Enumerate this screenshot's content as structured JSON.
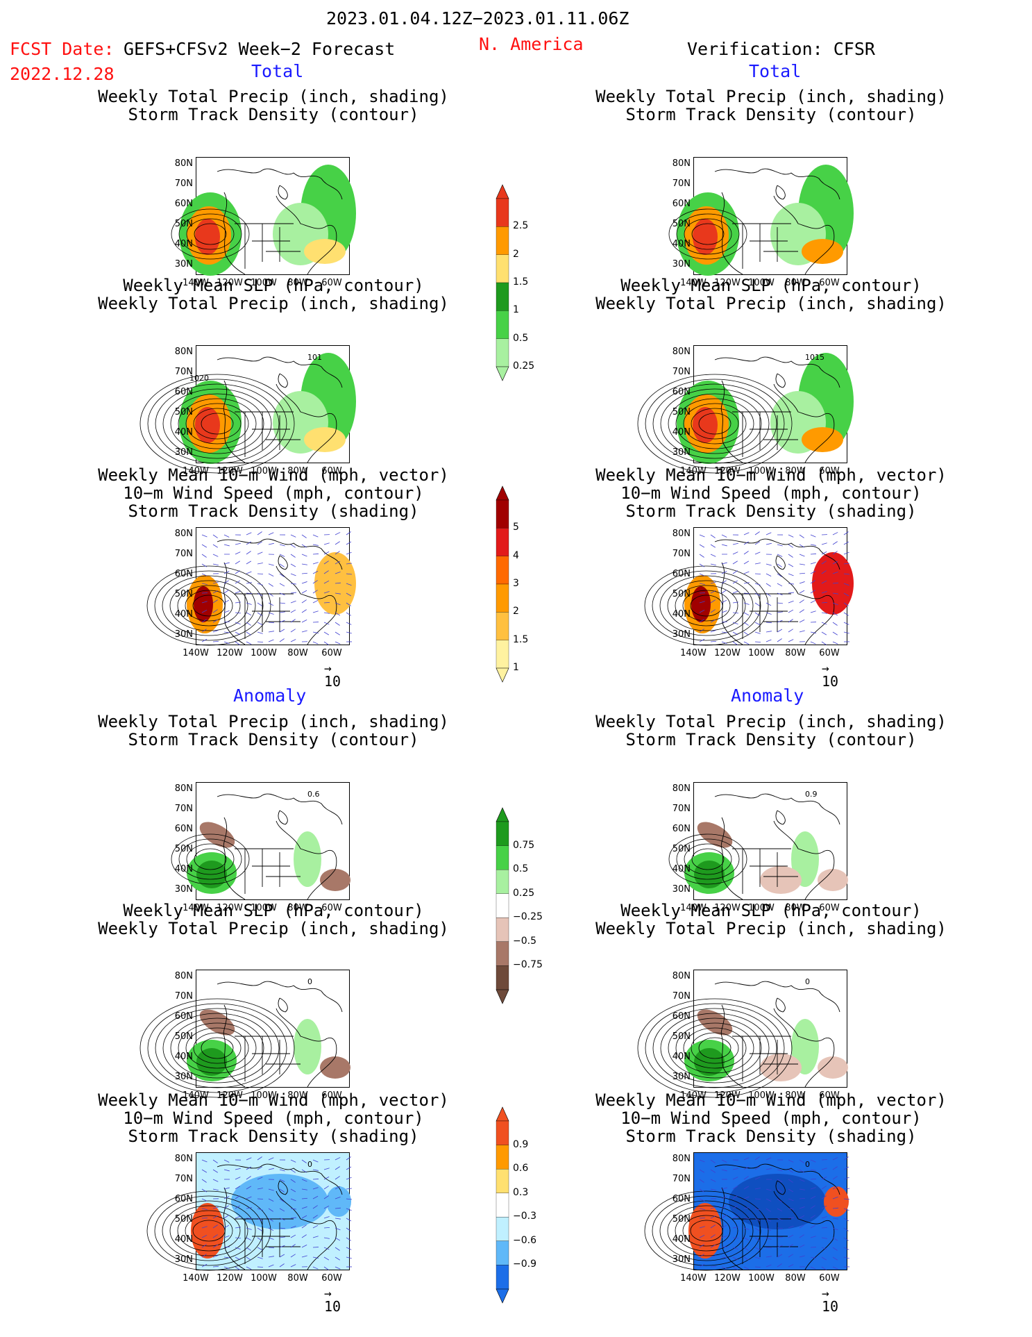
{
  "header": {
    "period": "2023.01.04.12Z−2023.01.11.06Z",
    "fcst_label": "FCST Date:",
    "model": "GEFS+CFSv2 Week−2 Forecast",
    "fcst_date": "2022.12.28",
    "region": "N. America",
    "verification": "Verification: CFSR"
  },
  "sections": {
    "total": "Total",
    "anomaly": "Anomaly"
  },
  "panel_titles": {
    "precip_track": [
      "Weekly Total Precip (inch, shading)",
      "Storm Track Density (contour)"
    ],
    "slp_precip": [
      "Weekly Mean SLP (hPa, contour)",
      "Weekly Total Precip (inch, shading)"
    ],
    "wind_track": [
      "Weekly Mean 10−m Wind (mph, vector)",
      "10−m Wind Speed (mph, contour)",
      "Storm Track Density (shading)"
    ]
  },
  "axes": {
    "lat_labels": [
      "80N",
      "70N",
      "60N",
      "50N",
      "40N",
      "30N"
    ],
    "lon_labels": [
      "140W",
      "120W",
      "100W",
      "80W",
      "60W"
    ]
  },
  "vector_reference": "10",
  "contour_labels": {
    "fcst_slp_total": [
      "101",
      "1020"
    ],
    "cfsr_slp_total": [
      "1015"
    ],
    "fcst_precip_anom": [
      "0.6"
    ],
    "cfsr_precip_anom": [
      "0.9"
    ],
    "slp_anom": [
      "0"
    ],
    "wind_anom": [
      "0"
    ]
  },
  "colorbars": {
    "precip_total": {
      "labels": [
        "2.5",
        "2",
        "1.5",
        "1",
        "0.5",
        "0.25"
      ],
      "colors": [
        "#e8381c",
        "#ff9a00",
        "#ffe070",
        "#1e9a1e",
        "#47d147",
        "#a8f0a0"
      ]
    },
    "track_total": {
      "labels": [
        "5",
        "4",
        "3",
        "2",
        "1.5",
        "1"
      ],
      "colors": [
        "#a00000",
        "#e21a1a",
        "#ff6a00",
        "#ff9a00",
        "#ffc040",
        "#fff2a0"
      ]
    },
    "precip_anom": {
      "labels": [
        "0.75",
        "0.5",
        "0.25",
        "−0.25",
        "−0.5",
        "−0.75"
      ],
      "colors": [
        "#1e9a1e",
        "#47d147",
        "#a8f0a0",
        "#ffffff",
        "#e6c4b8",
        "#a87868",
        "#6e4a3a"
      ]
    },
    "track_anom": {
      "labels": [
        "0.9",
        "0.6",
        "0.3",
        "−0.3",
        "−0.6",
        "−0.9"
      ],
      "colors": [
        "#f05020",
        "#ff9a00",
        "#ffe070",
        "#ffffff",
        "#c0f0ff",
        "#60b8f8",
        "#1c6ee8"
      ]
    }
  }
}
